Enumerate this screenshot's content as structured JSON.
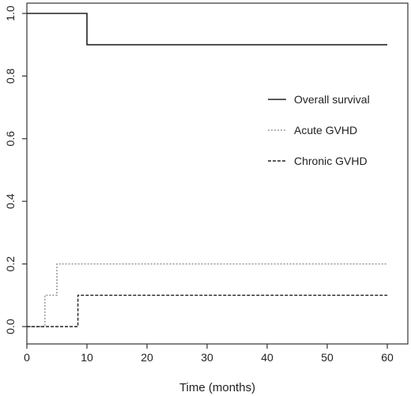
{
  "chart_data": {
    "type": "line",
    "title": "",
    "xlabel": "Time (months)",
    "ylabel": "",
    "xlim": [
      0,
      60
    ],
    "ylim": [
      0,
      1.0
    ],
    "xticks": [
      0,
      10,
      20,
      30,
      40,
      50,
      60
    ],
    "yticks": [
      0.0,
      0.2,
      0.4,
      0.6,
      0.8,
      1.0
    ],
    "x_tick_labels": [
      "0",
      "10",
      "20",
      "30",
      "40",
      "50",
      "60"
    ],
    "y_tick_labels": [
      "0.0",
      "0.2",
      "0.4",
      "0.6",
      "0.8",
      "1.0"
    ],
    "grid": false,
    "legend_position": "right",
    "series": [
      {
        "name": "Overall survival",
        "style": "solid",
        "color": "#222222",
        "steps": [
          [
            0,
            1.0
          ],
          [
            10,
            0.9
          ],
          [
            60,
            0.9
          ]
        ]
      },
      {
        "name": "Acute GVHD",
        "style": "dotted",
        "color": "#9a9a9a",
        "steps": [
          [
            0,
            0.0
          ],
          [
            3,
            0.1
          ],
          [
            5,
            0.2
          ],
          [
            60,
            0.2
          ]
        ]
      },
      {
        "name": "Chronic GVHD",
        "style": "dashed",
        "color": "#222222",
        "steps": [
          [
            0,
            0.0
          ],
          [
            8.5,
            0.1
          ],
          [
            60,
            0.1
          ]
        ]
      }
    ]
  }
}
